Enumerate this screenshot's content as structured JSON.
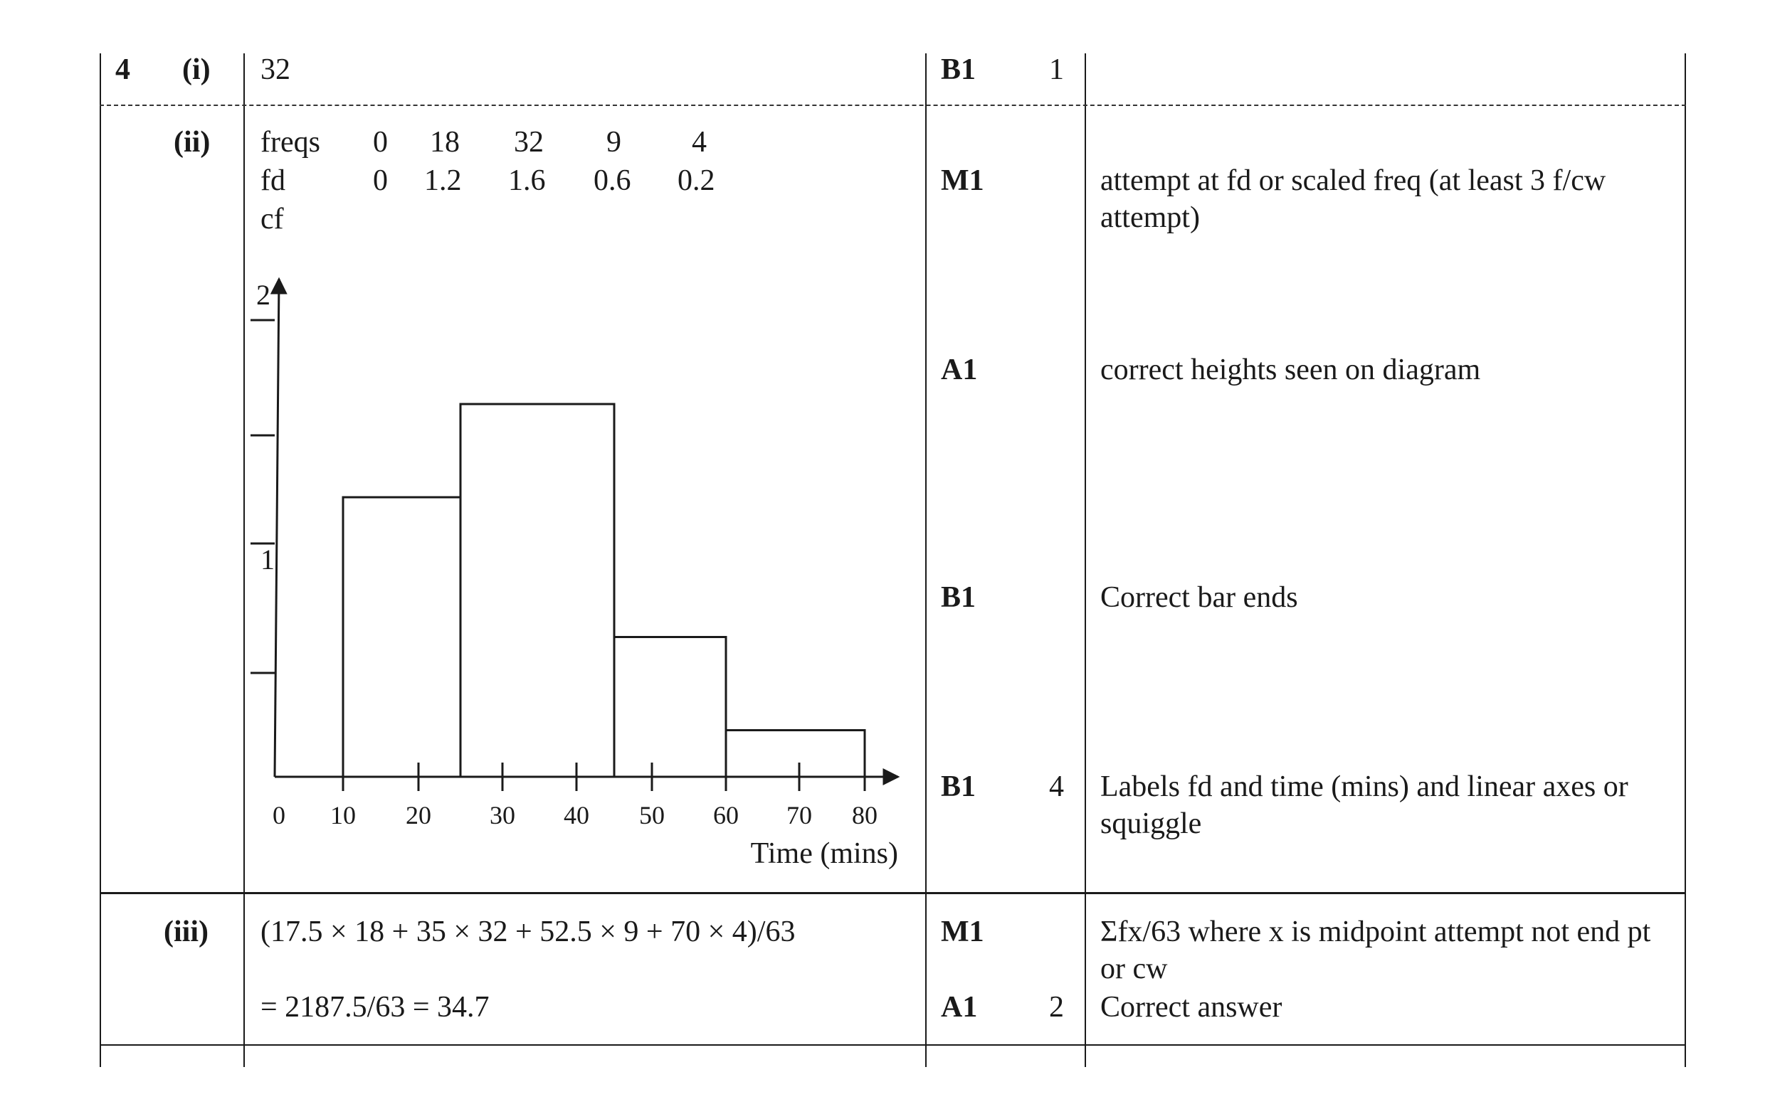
{
  "q1": {
    "number": "4",
    "part": "(i)",
    "answer": "32",
    "mark": "B1",
    "total": "1"
  },
  "q2": {
    "part": "(ii)",
    "table": {
      "rows": [
        {
          "label": "freqs",
          "values": [
            "0",
            "18",
            "32",
            "9",
            "4"
          ]
        },
        {
          "label": "fd",
          "values": [
            "0",
            "1.2",
            "1.6",
            "0.6",
            "0.2"
          ]
        },
        {
          "label": "cf",
          "values": []
        }
      ]
    },
    "marks": [
      {
        "mark": "M1",
        "total": "",
        "comment": "attempt at fd or scaled freq (at least 3 f/cw attempt)"
      },
      {
        "mark": "A1",
        "total": "",
        "comment": "correct heights seen on diagram"
      },
      {
        "mark": "B1",
        "total": "",
        "comment": "Correct bar ends"
      },
      {
        "mark": "B1",
        "total": "4",
        "comment": "Labels fd and time (mins) and linear axes or squiggle"
      }
    ]
  },
  "q3": {
    "part": "(iii)",
    "line1": "(17.5 × 18 + 35 × 32 + 52.5 × 9 + 70 × 4)/63",
    "line2": "= 2187.5/63 = 34.7",
    "marks": [
      {
        "mark": "M1",
        "total": "",
        "comment": "Σfx/63 where x is midpoint attempt not end pt or cw"
      },
      {
        "mark": "A1",
        "total": "2",
        "comment": "Correct answer"
      }
    ]
  },
  "chart_data": {
    "type": "bar",
    "xlabel": "Time (mins)",
    "ylabel": "",
    "x_ticks": [
      "0",
      "10",
      "20",
      "30",
      "40",
      "50",
      "60",
      "70",
      "80"
    ],
    "y_tick_labels": [
      "1",
      "2"
    ],
    "bins": [
      {
        "from": 10,
        "to": 25,
        "height": 1.2
      },
      {
        "from": 25,
        "to": 45,
        "height": 1.6
      },
      {
        "from": 45,
        "to": 60,
        "height": 0.6
      },
      {
        "from": 60,
        "to": 80,
        "height": 0.2
      }
    ]
  }
}
